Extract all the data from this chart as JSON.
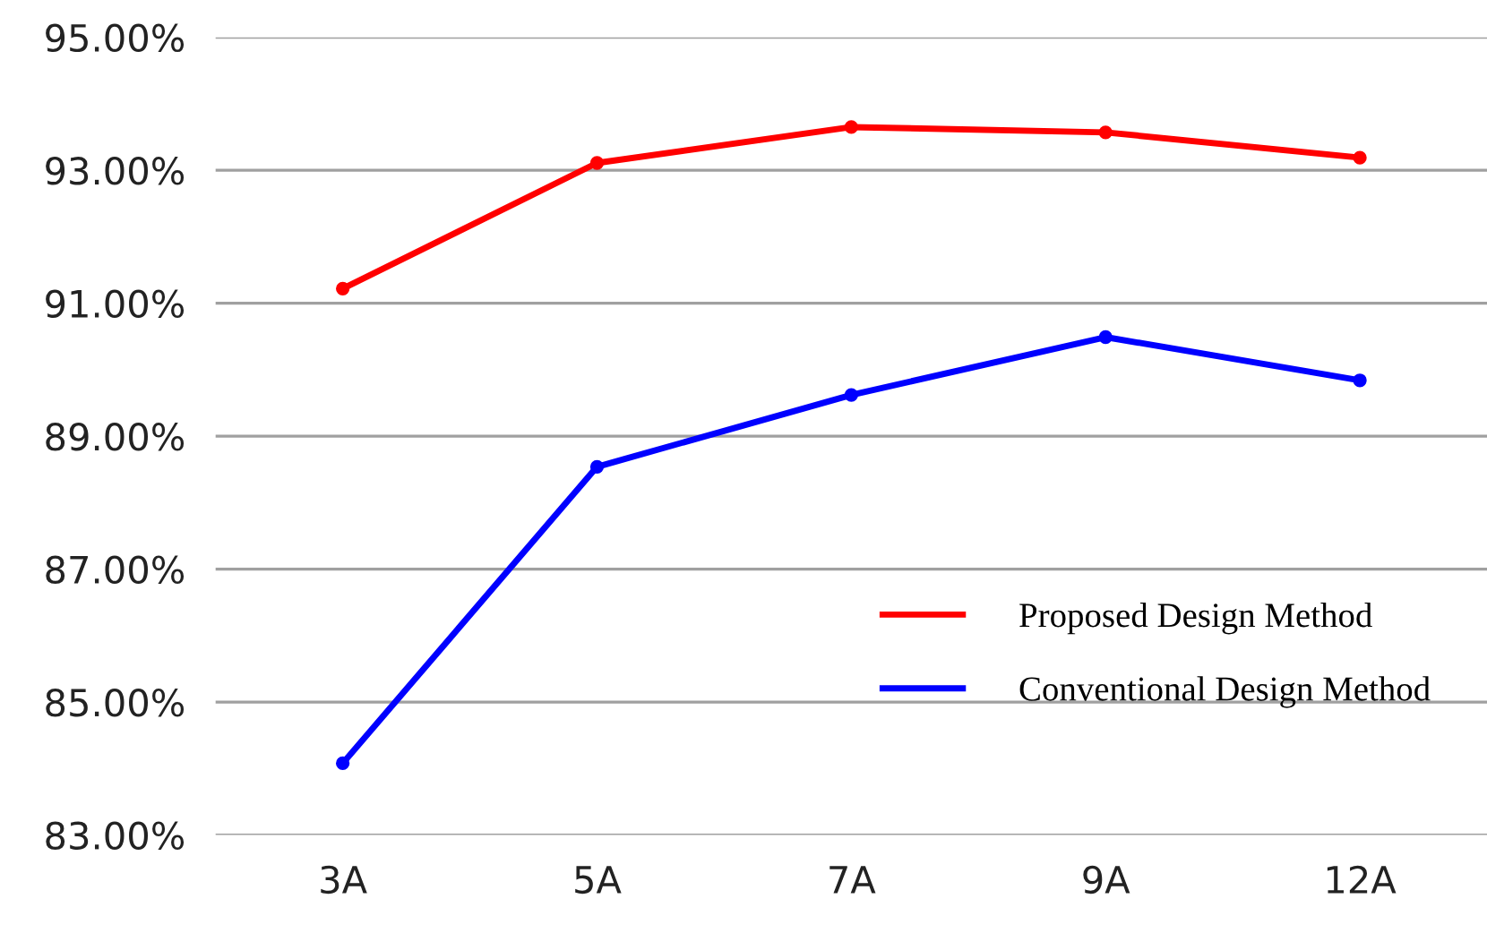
{
  "chart_data": {
    "type": "line",
    "categories": [
      "3A",
      "5A",
      "7A",
      "9A",
      "12A"
    ],
    "series": [
      {
        "name": "Proposed Design Method",
        "color": "#ff0000",
        "values": [
          91.22,
          93.11,
          93.65,
          93.57,
          93.19
        ]
      },
      {
        "name": "Conventional Design Method",
        "color": "#0000ff",
        "values": [
          84.08,
          88.54,
          89.62,
          90.49,
          89.84
        ]
      }
    ],
    "ylim": [
      83,
      95
    ],
    "yticks": [
      {
        "value": 83,
        "label": "83.00%"
      },
      {
        "value": 85,
        "label": "85.00%"
      },
      {
        "value": 87,
        "label": "87.00%"
      },
      {
        "value": 89,
        "label": "89.00%"
      },
      {
        "value": 91,
        "label": "91.00%"
      },
      {
        "value": 93,
        "label": "93.00%"
      },
      {
        "value": 95,
        "label": "95.00%"
      }
    ],
    "grid": "y",
    "legend": "bottom right",
    "marker": "circle",
    "line_style": "solid"
  }
}
